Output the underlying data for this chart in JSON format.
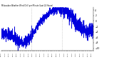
{
  "title": "Milwaukee Weather Wind Chill per Minute (Last 24 Hours)",
  "background_color": "#ffffff",
  "line_color": "#0000dd",
  "grid_color": "#999999",
  "ylim": [
    -11,
    5
  ],
  "yticks": [
    -10,
    -8,
    -6,
    -4,
    -2,
    0,
    2,
    4
  ],
  "num_points": 1440,
  "seed": 42,
  "num_vgrid": 3
}
